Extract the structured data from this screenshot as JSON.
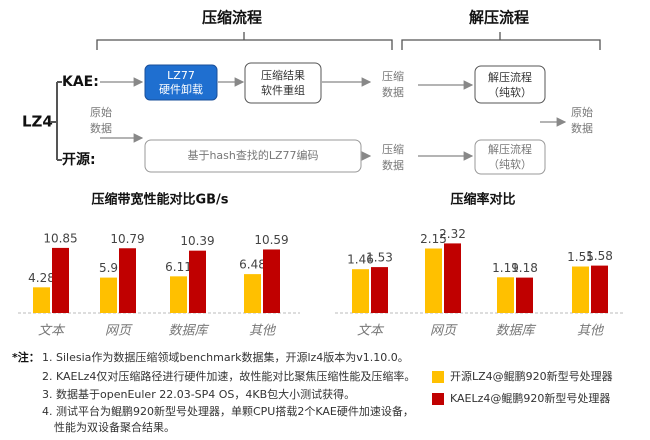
{
  "diagram": {
    "stage_titles": [
      "压缩流程",
      "解压流程"
    ],
    "lz4": "LZ4",
    "kae": "KAE:",
    "open": "开源:",
    "raw_in": [
      "原始",
      "数据"
    ],
    "kae_box": [
      "LZ77",
      "硬件卸载"
    ],
    "regroup_box": [
      "压缩结果",
      "软件重组"
    ],
    "comp_data_top": [
      "压缩",
      "数据"
    ],
    "decomp_top": [
      "解压流程",
      "（纯软）"
    ],
    "raw_out": [
      "原始",
      "数据"
    ],
    "hash_box": "基于hash查找的LZ77编码",
    "comp_data_bottom": [
      "压缩",
      "数据"
    ],
    "decomp_bottom": [
      "解压流程",
      "（纯软）"
    ]
  },
  "chart_data": [
    {
      "type": "bar",
      "title": "压缩带宽性能对比GB/s",
      "categories": [
        "文本",
        "网页",
        "数据库",
        "其他"
      ],
      "series": [
        {
          "name": "开源LZ4@鲲鹏920新型号处理器",
          "color": "#FFC000",
          "values": [
            4.28,
            5.9,
            6.11,
            6.48
          ]
        },
        {
          "name": "KAELz4@鲲鹏920新型号处理器",
          "color": "#C00000",
          "values": [
            10.85,
            10.79,
            10.39,
            10.59
          ]
        }
      ]
    },
    {
      "type": "bar",
      "title": "压缩率对比",
      "categories": [
        "文本",
        "网页",
        "数据库",
        "其他"
      ],
      "series": [
        {
          "color": "#FFC000",
          "values": [
            1.46,
            2.15,
            1.19,
            1.55
          ]
        },
        {
          "color": "#C00000",
          "values": [
            1.53,
            2.32,
            1.18,
            1.58
          ]
        }
      ]
    }
  ],
  "notes": {
    "label": "*注：",
    "lines": [
      "1. Silesia作为数据压缩领域benchmark数据集，开源lz4版本为v1.10.0。",
      "2. KAELz4仅对压缩路径进行硬件加速，故性能对比聚焦压缩性能及压缩率。",
      "3. 数据基于openEuler 22.03-SP4 OS，4KB包大小测试获得。",
      "4. 测试平台为鲲鹏920新型号处理器，单颗CPU搭载2个KAE硬件加速设备，",
      "性能为双设备聚合结果。"
    ]
  }
}
